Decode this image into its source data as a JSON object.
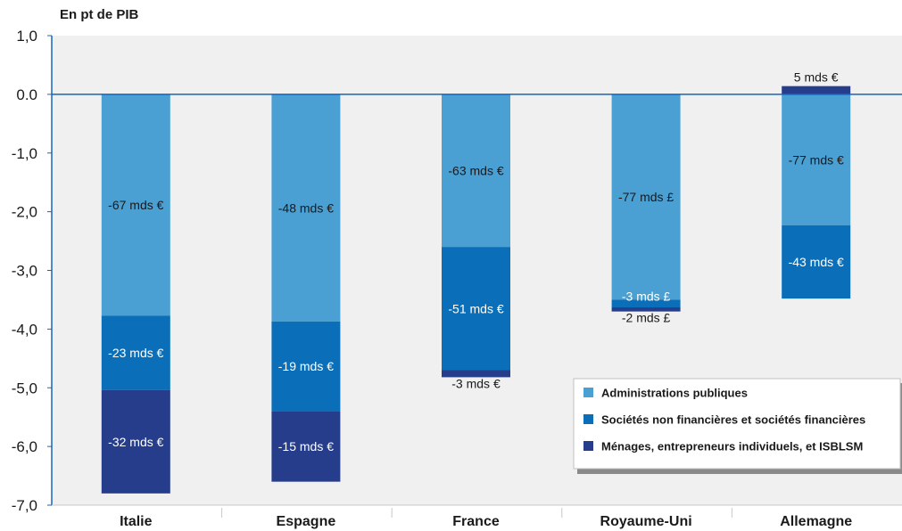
{
  "chart_data": {
    "type": "bar",
    "stacked": true,
    "ylabel": "En pt de PIB",
    "ylim": [
      -7.0,
      1.0
    ],
    "yticks": [
      "1,0",
      "0.0",
      "-1,0",
      "-2,0",
      "-3,0",
      "-4,0",
      "-5,0",
      "-6,0",
      "-7,0"
    ],
    "categories": [
      "Italie",
      "Espagne",
      "France",
      "Royaume-Uni",
      "Allemagne"
    ],
    "series": [
      {
        "name": "Administrations publiques",
        "color": "#4a9fd3",
        "values": [
          -3.77,
          -3.87,
          -2.6,
          -3.5,
          -2.23
        ],
        "labels": [
          "-67 mds €",
          "-48 mds €",
          "-63 mds €",
          "-77 mds £",
          "-77 mds €"
        ]
      },
      {
        "name": "Sociétés non financières et sociétés financières",
        "color": "#0a6fb8",
        "values": [
          -1.27,
          -1.53,
          -2.1,
          -0.13,
          -1.25
        ],
        "labels": [
          "-23 mds €",
          "-19 mds €",
          "-51 mds €",
          "-3 mds £",
          "-43 mds €"
        ]
      },
      {
        "name": "Ménages, entrepreneurs individuels, et ISBLSM",
        "color": "#263d8c",
        "values": [
          -1.76,
          -1.2,
          -0.12,
          -0.07,
          0.14
        ],
        "labels": [
          "-32 mds €",
          "-15 mds €",
          "-3 mds €",
          "-2 mds £",
          "5 mds €"
        ]
      }
    ],
    "legend_position": "bottom-right",
    "grid": false
  }
}
